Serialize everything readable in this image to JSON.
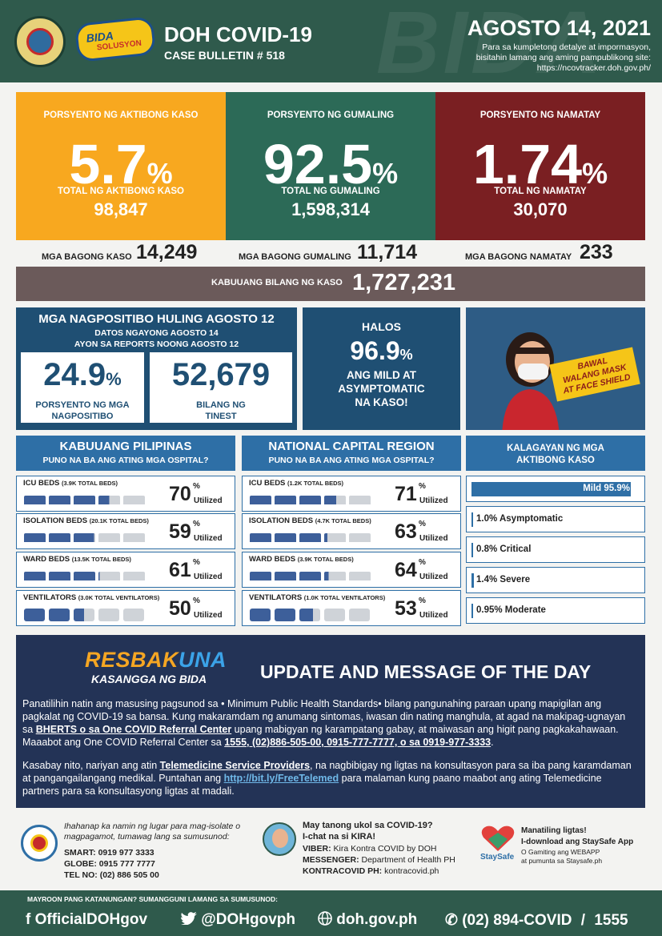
{
  "header": {
    "watermark": "BIDA",
    "title": "DOH COVID-19",
    "bulletin": "CASE BULLETIN # 518",
    "date": "AGOSTO 14, 2021",
    "note_line1": "Para sa kumpletong detalye at impormasyon,",
    "note_line2": "bisitahin lamang ang aming pampublikong site:",
    "note_line3": "https://ncovtracker.doh.gov.ph/",
    "bida_logo": "BIDA",
    "bida_logo_sub": "SOLUSYON",
    "colors": {
      "brand_green": "#2f5a4c"
    }
  },
  "stats": {
    "active": {
      "label": "PORSYENTO NG AKTIBONG KASO",
      "percent": "5.7",
      "sign": "%",
      "total_label": "TOTAL NG AKTIBONG KASO",
      "total": "98,847",
      "color": "#f8a81f"
    },
    "recovered": {
      "label": "PORSYENTO NG GUMALING",
      "percent": "92.5",
      "sign": "%",
      "total_label": "TOTAL NG GUMALING",
      "total": "1,598,314",
      "color": "#2c6a57"
    },
    "deaths": {
      "label": "PORSYENTO NG NAMATAY",
      "percent": "1.74",
      "sign": "%",
      "total_label": "TOTAL NG NAMATAY",
      "total": "30,070",
      "color": "#7a1f22"
    }
  },
  "new_cases": {
    "cases_label": "MGA BAGONG KASO",
    "cases": "14,249",
    "recovered_label": "MGA BAGONG GUMALING",
    "recovered": "11,714",
    "deaths_label": "MGA BAGONG NAMATAY",
    "deaths": "233"
  },
  "total": {
    "label": "KABUUANG BILANG NG KASO",
    "value": "1,727,231"
  },
  "positivity": {
    "title": "MGA NAGPOSITIBO HULING AGOSTO 12",
    "sub1": "DATOS NGAYONG AGOSTO 14",
    "sub2": "AYON SA REPORTS NOONG AGOSTO 12",
    "rate": "24.9",
    "rate_sign": "%",
    "rate_cap1": "PORSYENTO NG MGA",
    "rate_cap2": "NAGPOSITIBO",
    "tested": "52,679",
    "tested_cap1": "BILANG NG",
    "tested_cap2": "TINEST"
  },
  "mild": {
    "top": "HALOS",
    "value": "96.9",
    "sign": "%",
    "line1": "ANG MILD AT",
    "line2": "ASYMPTOMATIC",
    "line3": "NA KASO!"
  },
  "mask": {
    "line1": "BAWAL",
    "line2": "WALANG MASK",
    "line3": "AT FACE SHIELD"
  },
  "ph": {
    "title": "KABUUANG PILIPINAS",
    "sub": "PUNO NA BA ANG ATING MGA OSPITAL?",
    "rows": [
      {
        "label": "ICU BEDS",
        "cap": "(3.9K TOTAL BEDS)",
        "pct": "70",
        "sign": "%",
        "util": "Utilized",
        "utilization": 0.7
      },
      {
        "label": "ISOLATION BEDS",
        "cap": "(20.1K TOTAL BEDS)",
        "pct": "59",
        "sign": "%",
        "util": "Utilized",
        "utilization": 0.59
      },
      {
        "label": "WARD BEDS",
        "cap": "(13.5K TOTAL BEDS)",
        "pct": "61",
        "sign": "%",
        "util": "Utilized",
        "utilization": 0.61
      },
      {
        "label": "VENTILATORS",
        "cap": "(3.0K TOTAL VENTILATORS)",
        "pct": "50",
        "sign": "%",
        "util": "Utilized",
        "utilization": 0.5
      }
    ]
  },
  "ncr": {
    "title": "NATIONAL CAPITAL REGION",
    "sub": "PUNO NA BA ANG ATING MGA OSPITAL?",
    "rows": [
      {
        "label": "ICU BEDS",
        "cap": "(1.2K TOTAL BEDS)",
        "pct": "71",
        "sign": "%",
        "util": "Utilized",
        "utilization": 0.71
      },
      {
        "label": "ISOLATION BEDS",
        "cap": "(4.7K TOTAL BEDS)",
        "pct": "63",
        "sign": "%",
        "util": "Utilized",
        "utilization": 0.63
      },
      {
        "label": "WARD BEDS",
        "cap": "(3.9K TOTAL BEDS)",
        "pct": "64",
        "sign": "%",
        "util": "Utilized",
        "utilization": 0.64
      },
      {
        "label": "VENTILATORS",
        "cap": "(1.0K TOTAL VENTILATORS)",
        "pct": "53",
        "sign": "%",
        "util": "Utilized",
        "utilization": 0.53
      }
    ]
  },
  "status": {
    "title1": "KALAGAYAN NG MGA",
    "title2": "AKTIBONG KASO",
    "rows": [
      {
        "text": "Mild 95.9%",
        "share": 0.959
      },
      {
        "text": "1.0% Asymptomatic",
        "share": 0.01
      },
      {
        "text": "0.8% Critical",
        "share": 0.008
      },
      {
        "text": "1.4% Severe",
        "share": 0.014
      },
      {
        "text": "0.95% Moderate",
        "share": 0.0095
      }
    ]
  },
  "message": {
    "logo_a": "RESBAK",
    "logo_b": "UNA",
    "logo_sub": "KASANGGA NG BIDA",
    "title": "UPDATE AND MESSAGE OF THE DAY",
    "p1_a": "Panatilihin natin ang masusing pagsunod sa • Minimum Public Health Standards• bilang pangunahing paraan upang mapigilan ang pagkalat ng COVID-19 sa bansa. Kung makaramdam ng anumang sintomas, iwasan din nating manghula, at agad na makipag-ugnayan sa ",
    "p1_link1": "BHERTS o sa One COVID Referral Center",
    "p1_b": " upang mabigyan ng karampatang gabay, at maiwasan ang higit pang pagkakahawaan. Maaabot ang One COVID Referral Center sa ",
    "p1_link2": "1555, (02)886-505-00, 0915-777-7777, o sa 0919-977-3333",
    "p1_c": ".",
    "p2_a": "Kasabay nito, nariyan ang atin ",
    "p2_link1": "Telemedicine Service Providers",
    "p2_b": ", na nagbibigay ng ligtas na konsultasyon para sa iba pang karamdaman at pangangailangang medikal. Puntahan ang ",
    "p2_url": "http://bit.ly/FreeTelemed",
    "p2_c": " para malaman kung paano maabot ang ating Telemedicine partners para sa konsultasyong ligtas at madali."
  },
  "contacts": {
    "iso_line1": "Ihahanap ka namin ng lugar para mag-isolate o",
    "iso_line2": "magpagamot, tumawag lang sa sumusunod:",
    "smart": "SMART: 0919 977 3333",
    "globe": "GLOBE: 0915 777 7777",
    "tel": "TEL NO: (02) 886 505 00",
    "kira_line1": "May tanong ukol sa COVID-19?",
    "kira_line2": "I-chat na si KIRA!",
    "viber_label": "VIBER:",
    "viber": " Kira Kontra COVID by DOH",
    "messenger_label": "MESSENGER:",
    "messenger": " Department of Health PH",
    "kontra_label": "KONTRACOVID PH:",
    "kontra": " kontracovid.ph",
    "staysafe_logo": "StaySafe",
    "ss_line1": "Manatiling ligtas!",
    "ss_line2": "I-download ang StaySafe App",
    "ss_line3": "O Gamiting ang WEBAPP",
    "ss_line4": "at pumunta sa Staysafe.ph"
  },
  "footer": {
    "question": "MAYROON PANG KATANUNGAN? SUMANGGUNI LAMANG SA SUMUSUNOD:",
    "facebook": "OfficialDOHgov",
    "twitter": "@DOHgovph",
    "web": "doh.gov.ph",
    "phone": "(02) 894-COVID",
    "slash": "/",
    "hotline": "1555"
  }
}
